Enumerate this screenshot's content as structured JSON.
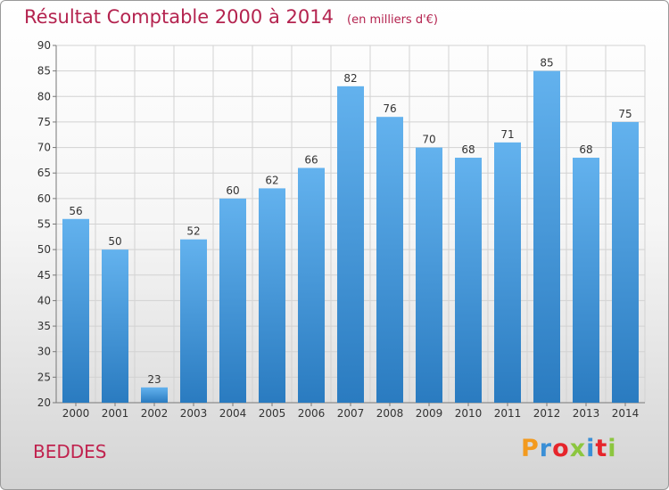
{
  "title": "Résultat Comptable 2000 à 2014",
  "unit_label": "(en milliers d'€)",
  "place_name": "BEDDES",
  "logo_text": "Proxiti",
  "colors": {
    "title": "#b4234f",
    "bar_top": "#63b2ee",
    "bar_bottom": "#2a7bc0",
    "logo": [
      "#f39a1e",
      "#3a8fd6",
      "#e6252b",
      "#8cc63f",
      "#3a8fd6",
      "#e6252b",
      "#8cc63f"
    ]
  },
  "chart_data": {
    "type": "bar",
    "categories": [
      "2000",
      "2001",
      "2002",
      "2003",
      "2004",
      "2005",
      "2006",
      "2007",
      "2008",
      "2009",
      "2010",
      "2011",
      "2012",
      "2013",
      "2014"
    ],
    "values": [
      56,
      50,
      23,
      52,
      60,
      62,
      66,
      82,
      76,
      70,
      68,
      71,
      85,
      68,
      75
    ],
    "ylim": [
      20,
      90
    ],
    "yticks": [
      20,
      25,
      30,
      35,
      40,
      45,
      50,
      55,
      60,
      65,
      70,
      75,
      80,
      85,
      90
    ],
    "grid": true,
    "legend": "none"
  }
}
